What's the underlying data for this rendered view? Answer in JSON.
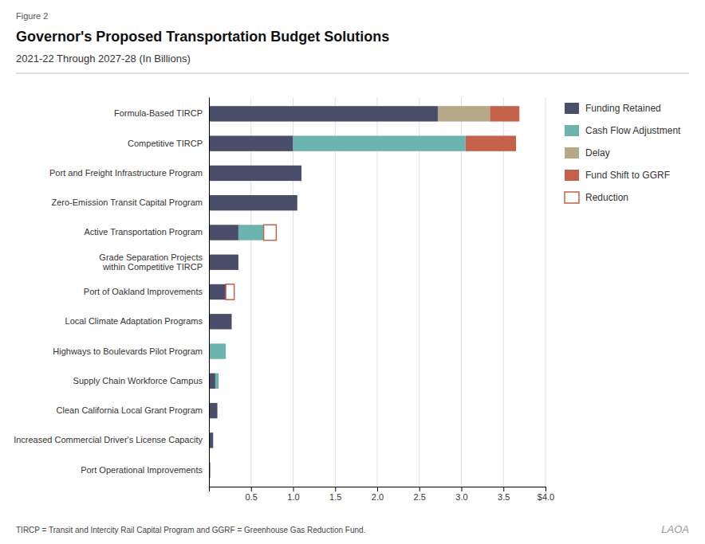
{
  "chart_data": {
    "type": "bar",
    "orientation": "horizontal",
    "stacked": true,
    "title": "Governor's Proposed Transportation Budget Solutions",
    "subtitle": "2021-22 Through 2027-28 (In Billions)",
    "annotations": [
      "Figure 2",
      "TIRCP = Transit and Intercity Rail Capital Program and GGRF = Greenhouse Gas Reduction Fund.",
      "LAOA"
    ],
    "categories": [
      "Formula-Based TIRCP",
      "Competitive TIRCP",
      "Port and Freight Infrastructure Program",
      "Zero-Emission Transit Capital Program",
      "Active Transportation Program",
      "Grade Separation Projects\nwithin Competitive TIRCP",
      "Port of Oakland Improvements",
      "Local Climate Adaptation Programs",
      "Highways to Boulevards Pilot Program",
      "Supply Chain Workforce Campus",
      "Clean California Local Grant Program",
      "Increased Commercial Driver's License Capacity",
      "Port Operational Improvements"
    ],
    "series": [
      {
        "name": "Funding Retained",
        "color": "#4a4e6b",
        "values": [
          2.72,
          1.0,
          1.1,
          1.05,
          0.35,
          0.35,
          0.2,
          0.27,
          0.0,
          0.075,
          0.1,
          0.05,
          0.015
        ]
      },
      {
        "name": "Cash Flow Adjustment",
        "color": "#6db4ae",
        "values": [
          0.0,
          2.05,
          0.0,
          0.0,
          0.3,
          0.0,
          0.0,
          0.0,
          0.2,
          0.04,
          0.0,
          0.0,
          0.0
        ]
      },
      {
        "name": "Delay",
        "color": "#b5a98a",
        "values": [
          0.62,
          0.0,
          0.0,
          0.0,
          0.0,
          0.0,
          0.0,
          0.0,
          0.0,
          0.0,
          0.0,
          0.0,
          0.0
        ]
      },
      {
        "name": "Fund Shift to GGRF",
        "color": "#c4614a",
        "values": [
          0.35,
          0.6,
          0.0,
          0.0,
          0.0,
          0.0,
          0.0,
          0.0,
          0.0,
          0.0,
          0.0,
          0.0,
          0.0
        ]
      },
      {
        "name": "Reduction",
        "color": "#c4614a",
        "type": "outline",
        "values": [
          0.0,
          0.0,
          0.0,
          0.0,
          0.15,
          0.0,
          0.1,
          0.0,
          0.0,
          0.0,
          0.0,
          0.0,
          0.0
        ]
      }
    ],
    "xlim": [
      0,
      4.0
    ],
    "xticks": [
      0.5,
      {
        "value": 1.0,
        "label": "1.0"
      },
      1.5,
      {
        "value": 2.0,
        "label": "2.0"
      },
      2.5,
      {
        "value": 3.0,
        "label": "3.0"
      },
      3.5,
      {
        "value": 4.0,
        "label": "$4.0"
      }
    ],
    "grid": true,
    "legend": "right"
  }
}
